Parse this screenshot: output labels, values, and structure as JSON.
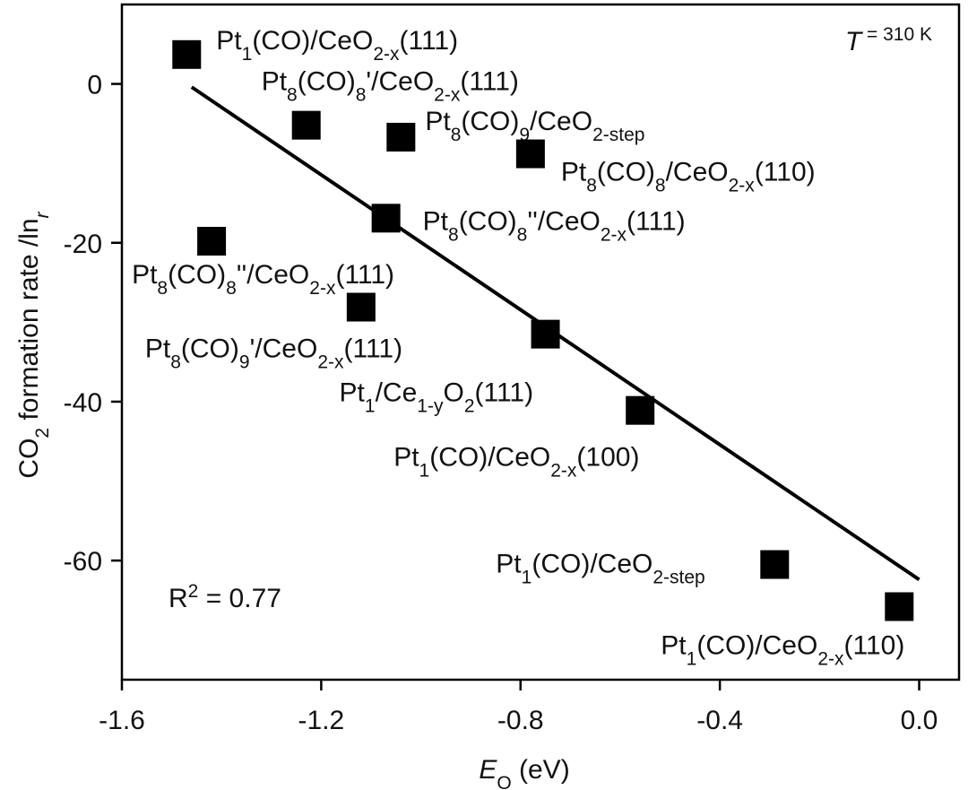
{
  "chart_data": {
    "type": "scatter",
    "x_label": [
      "E",
      "O",
      " (eV)"
    ],
    "y_label": [
      "CO",
      "2",
      " formation rate /ln",
      "r"
    ],
    "annotations": {
      "temperature": [
        "T",
        " = 310 K"
      ],
      "r_squared": [
        "R",
        "2",
        " = 0.77"
      ]
    },
    "xlim": [
      -1.6,
      0.08
    ],
    "ylim": [
      -75,
      10
    ],
    "xticks": [
      -1.6,
      -1.2,
      -0.8,
      -0.4,
      {
        "value": 0,
        "label": "0.0"
      }
    ],
    "yticks": [
      0,
      -20,
      -40,
      -60
    ],
    "color": "#000000",
    "x": [
      -1.47,
      -1.23,
      -1.04,
      -0.78,
      -1.07,
      -1.42,
      -1.12,
      -0.75,
      -0.56,
      -0.29,
      -0.04
    ],
    "values": [
      3.7,
      -5.2,
      -6.7,
      -8.8,
      -16.9,
      -19.8,
      -28.1,
      -31.5,
      -41.1,
      -60.5,
      -65.8
    ],
    "point_labels": [
      [
        "Pt",
        "1",
        "(CO)/CeO",
        "2-x",
        "(111)"
      ],
      [
        "Pt",
        "8",
        "(CO)",
        "8",
        "'/CeO",
        "2-x",
        "(111)"
      ],
      [
        "Pt",
        "8",
        "(CO)",
        "9",
        "/CeO",
        "2-step"
      ],
      [
        "Pt",
        "8",
        "(CO)",
        "8",
        "/CeO",
        "2-x",
        "(110)"
      ],
      [
        "Pt",
        "8",
        "(CO)",
        "8",
        "''/CeO",
        "2-x",
        "(111)"
      ],
      [
        "Pt",
        "8",
        "(CO)",
        "8",
        "''/CeO",
        "2-x",
        "(111)"
      ],
      [
        "Pt",
        "8",
        "(CO)",
        "9",
        "'/CeO",
        "2-x",
        "(111)"
      ],
      [
        "Pt",
        "1",
        "/Ce",
        "1-y",
        "O",
        "2",
        "(111)"
      ],
      [
        "Pt",
        "1",
        "(CO)/CeO",
        "2-x",
        "(100)"
      ],
      [
        "Pt",
        "1",
        "(CO)/CeO",
        "2-step"
      ],
      [
        "Pt",
        "1",
        "(CO)/CeO",
        "2-x",
        "(110)"
      ]
    ],
    "fit_line": {
      "x": [
        -1.46,
        0.0
      ],
      "y": [
        -0.4,
        -62.4
      ]
    }
  }
}
